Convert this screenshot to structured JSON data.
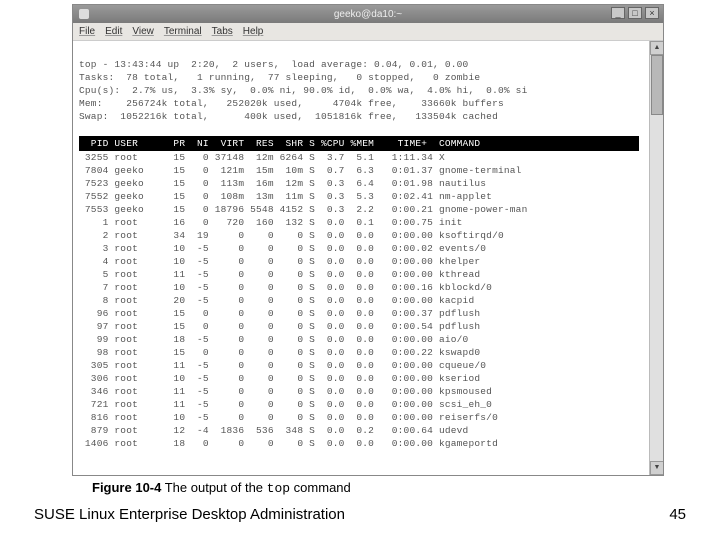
{
  "window": {
    "title": "geeko@da10:~",
    "min": "_",
    "max": "□",
    "close": "×"
  },
  "menu": {
    "file": "File",
    "edit": "Edit",
    "view": "View",
    "terminal": "Terminal",
    "tabs": "Tabs",
    "help": "Help"
  },
  "top": {
    "line1": "top - 13:43:44 up  2:20,  2 users,  load average: 0.04, 0.01, 0.00",
    "line2": "Tasks:  78 total,   1 running,  77 sleeping,   0 stopped,   0 zombie",
    "line3": "Cpu(s):  2.7% us,  3.3% sy,  0.0% ni, 90.0% id,  0.0% wa,  4.0% hi,  0.0% si",
    "line4": "Mem:    256724k total,   252020k used,     4704k free,    33660k buffers",
    "line5": "Swap:  1052216k total,      400k used,  1051816k free,   133504k cached",
    "header": "  PID USER      PR  NI  VIRT  RES  SHR S %CPU %MEM    TIME+  COMMAND",
    "rows": [
      " 3255 root      15   0 37148  12m 6264 S  3.7  5.1   1:11.34 X",
      " 7804 geeko     15   0  121m  15m  10m S  0.7  6.3   0:01.37 gnome-terminal",
      " 7523 geeko     15   0  113m  16m  12m S  0.3  6.4   0:01.98 nautilus",
      " 7552 geeko     15   0  108m  13m  11m S  0.3  5.3   0:02.41 nm-applet",
      " 7553 geeko     15   0 18796 5548 4152 S  0.3  2.2   0:00.21 gnome-power-man",
      "    1 root      16   0   720  160  132 S  0.0  0.1   0:00.75 init",
      "    2 root      34  19     0    0    0 S  0.0  0.0   0:00.00 ksoftirqd/0",
      "    3 root      10  -5     0    0    0 S  0.0  0.0   0:00.02 events/0",
      "    4 root      10  -5     0    0    0 S  0.0  0.0   0:00.00 khelper",
      "    5 root      11  -5     0    0    0 S  0.0  0.0   0:00.00 kthread",
      "    7 root      10  -5     0    0    0 S  0.0  0.0   0:00.16 kblockd/0",
      "    8 root      20  -5     0    0    0 S  0.0  0.0   0:00.00 kacpid",
      "   96 root      15   0     0    0    0 S  0.0  0.0   0:00.37 pdflush",
      "   97 root      15   0     0    0    0 S  0.0  0.0   0:00.54 pdflush",
      "   99 root      18  -5     0    0    0 S  0.0  0.0   0:00.00 aio/0",
      "   98 root      15   0     0    0    0 S  0.0  0.0   0:00.22 kswapd0",
      "  305 root      11  -5     0    0    0 S  0.0  0.0   0:00.00 cqueue/0",
      "  306 root      10  -5     0    0    0 S  0.0  0.0   0:00.00 kseriod",
      "  346 root      11  -5     0    0    0 S  0.0  0.0   0:00.00 kpsmoused",
      "  721 root      11  -5     0    0    0 S  0.0  0.0   0:00.00 scsi_eh_0",
      "  816 root      10  -5     0    0    0 S  0.0  0.0   0:00.00 reiserfs/0",
      "  879 root      12  -4  1836  536  348 S  0.0  0.2   0:00.64 udevd",
      " 1406 root      18   0     0    0    0 S  0.0  0.0   0:00.00 kgameportd"
    ]
  },
  "caption": {
    "fig": "Figure 10-4",
    "rest_a": " The output of the ",
    "cmd": "top",
    "rest_b": " command"
  },
  "footer": "SUSE Linux Enterprise Desktop Administration",
  "page": "45"
}
